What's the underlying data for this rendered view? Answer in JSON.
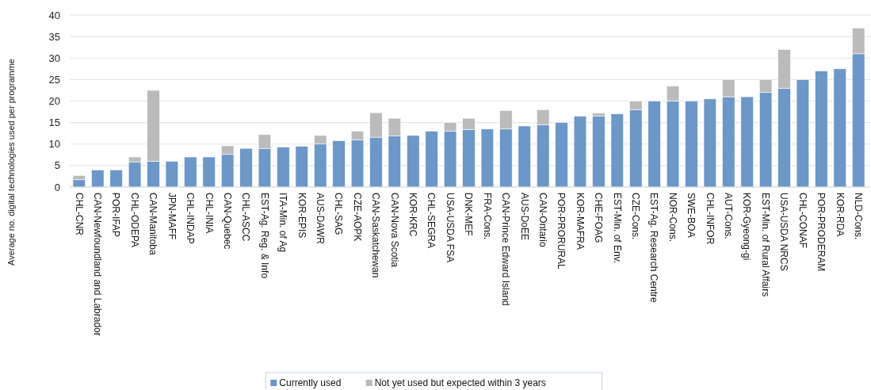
{
  "chart_data": {
    "type": "bar",
    "stacked": true,
    "ylabel": "Average no. digital technologies used per programme",
    "categories": [
      "CHL-CNR",
      "CAN-Newfoundland and Labrador",
      "POR-IFAP",
      "CHL-ODEPA",
      "CAN-Manitoba",
      "JPN-MAFF",
      "CHL-INDAP",
      "CHL-INIA",
      "CAN-Quebec",
      "CHL-ASCC",
      "EST-Ag. Reg. & Info",
      "ITA-Min. of Ag",
      "KOR-EPIS",
      "AUS-DAWR",
      "CHL-SAG",
      "CZE-AOPK",
      "CAN-Saskatchewan",
      "CAN-Nova Scotia",
      "KOR-KRC",
      "CHL-SEGRA",
      "USA-USDA FSA",
      "DNK-MEF",
      "FRA-Cons.",
      "CAN-Prince Edward Island",
      "AUS-DoEE",
      "CAN-Ontario",
      "POR-PRORURAL",
      "KOR-MAFRA",
      "CHE-FOAG",
      "EST-Min. of Env.",
      "CZE-Cons.",
      "EST-Ag. Research Centre",
      "NOR-Cons.",
      "SWE-BOA",
      "CHL-INFOR",
      "AUT-Cons.",
      "KOR-Gyeong-gi",
      "EST-Min. of Rural Affairs",
      "USA-USDA NRCS",
      "CHL-CONAF",
      "POR-PRODERAM",
      "KOR-RDA",
      "NLD-Cons."
    ],
    "series": [
      {
        "name": "Currently used",
        "color": "#6b97c9",
        "values": [
          1.7,
          4,
          4,
          5.8,
          6,
          6,
          7,
          7,
          7.6,
          9,
          9,
          9.3,
          9.5,
          10,
          10.8,
          11,
          11.6,
          11.9,
          12,
          13,
          13,
          13.4,
          13.5,
          13.5,
          14.2,
          14.5,
          15,
          16.5,
          16.5,
          17,
          18,
          20,
          20,
          20,
          20.5,
          21,
          21,
          22,
          23,
          25,
          27,
          27.5,
          31
        ]
      },
      {
        "name": "Not yet used but expected within 3 years",
        "color": "#bbbbbb",
        "values": [
          1,
          null,
          null,
          1.2,
          16.5,
          null,
          null,
          null,
          2,
          null,
          3.2,
          null,
          null,
          2,
          null,
          2,
          5.7,
          4.1,
          null,
          null,
          2,
          2.6,
          null,
          4.3,
          null,
          3.5,
          null,
          null,
          0.7,
          null,
          2,
          null,
          3.5,
          null,
          null,
          4,
          null,
          3,
          9,
          null,
          null,
          null,
          6
        ]
      }
    ],
    "ylim": [
      0,
      40
    ],
    "yticks": [
      0,
      5,
      10,
      15,
      20,
      25,
      30,
      35,
      40
    ],
    "grid": "y",
    "legend": "bottom"
  }
}
